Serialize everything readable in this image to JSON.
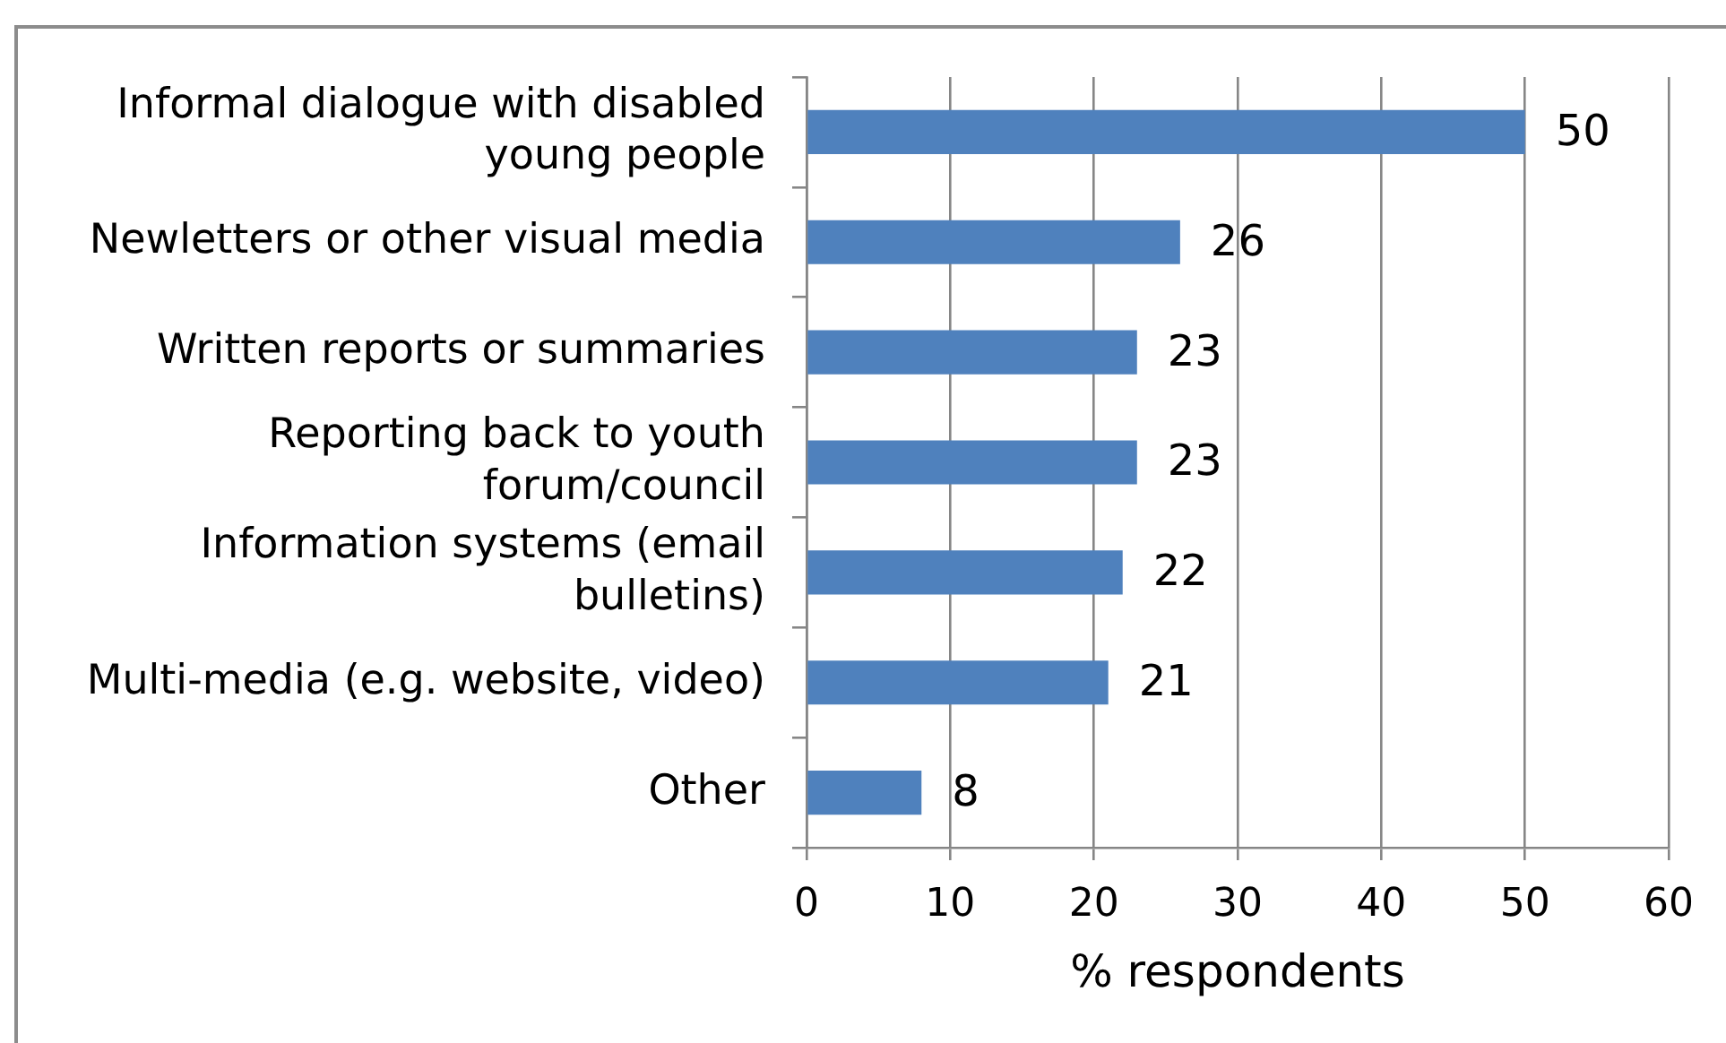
{
  "chart_data": {
    "type": "bar",
    "orientation": "horizontal",
    "categories": [
      "Informal dialogue with disabled young people",
      "Newletters or other visual media",
      "Written reports or summaries",
      "Reporting back to youth forum/council",
      "Information systems (email bulletins)",
      "Multi-media (e.g. website, video)",
      "Other"
    ],
    "values": [
      50,
      26,
      23,
      23,
      22,
      21,
      8
    ],
    "color": "#4f81bd",
    "xlabel": "% respondents",
    "xlim": [
      0,
      60
    ],
    "xticks": [
      0,
      10,
      20,
      30,
      40,
      50,
      60
    ],
    "grid": "x",
    "data_labels": true
  }
}
